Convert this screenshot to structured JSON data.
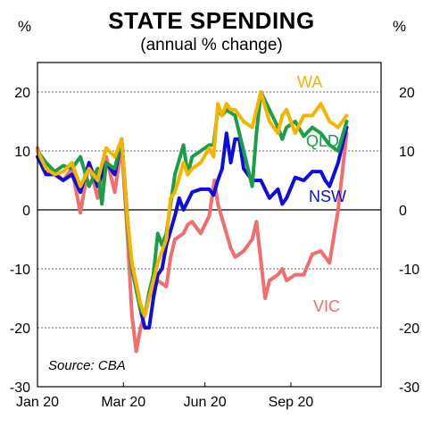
{
  "chart_data": {
    "type": "line",
    "title": "STATE SPENDING",
    "subtitle": "(annual % change)",
    "ylabel_left": "%",
    "ylabel_right": "%",
    "source": "Source: CBA",
    "ylim": [
      -30,
      25
    ],
    "xlim": [
      0,
      40
    ],
    "yticks": [
      20,
      10,
      0,
      -10,
      -20,
      -30
    ],
    "xticks": [
      {
        "x": 0,
        "label": "Jan 20"
      },
      {
        "x": 10,
        "label": "Mar 20"
      },
      {
        "x": 19.5,
        "label": "Jun 20"
      },
      {
        "x": 29.5,
        "label": "Sep 20"
      }
    ],
    "grid": true,
    "series": [
      {
        "name": "VIC",
        "color": "#f26d6d",
        "values": [
          [
            0,
            10.5
          ],
          [
            1,
            6
          ],
          [
            2,
            6.5
          ],
          [
            3,
            5
          ],
          [
            4,
            7
          ],
          [
            5,
            -0.5
          ],
          [
            6,
            8
          ],
          [
            7,
            2
          ],
          [
            8,
            9
          ],
          [
            9,
            3
          ],
          [
            9.8,
            11
          ],
          [
            10.5,
            -5
          ],
          [
            11,
            -18
          ],
          [
            11.5,
            -24
          ],
          [
            12,
            -20
          ],
          [
            13,
            -15
          ],
          [
            14,
            -12
          ],
          [
            15,
            -13
          ],
          [
            15.5,
            -8
          ],
          [
            16,
            -5
          ],
          [
            17,
            -4
          ],
          [
            17.5,
            -2.5
          ],
          [
            18,
            -2
          ],
          [
            19,
            -4
          ],
          [
            20,
            -1
          ],
          [
            20.6,
            5
          ],
          [
            21,
            1
          ],
          [
            22,
            -4
          ],
          [
            22.5,
            -6.5
          ],
          [
            23,
            -8
          ],
          [
            24,
            -7
          ],
          [
            25,
            -5
          ],
          [
            25.5,
            -2
          ],
          [
            26.5,
            -15
          ],
          [
            27,
            -12
          ],
          [
            28,
            -11
          ],
          [
            28.5,
            -10
          ],
          [
            29,
            -12
          ],
          [
            30,
            -11
          ],
          [
            31,
            -11
          ],
          [
            32,
            -7.5
          ],
          [
            33,
            -7
          ],
          [
            34,
            -9
          ],
          [
            35,
            0
          ],
          [
            36,
            13
          ]
        ]
      },
      {
        "name": "NSW",
        "color": "#0d0de0",
        "values": [
          [
            0,
            9
          ],
          [
            1,
            6
          ],
          [
            2,
            6
          ],
          [
            3,
            5
          ],
          [
            4,
            6
          ],
          [
            5,
            3
          ],
          [
            6,
            8
          ],
          [
            7,
            4
          ],
          [
            8,
            8
          ],
          [
            9,
            6
          ],
          [
            9.8,
            12
          ],
          [
            10.5,
            -2
          ],
          [
            11,
            -10
          ],
          [
            12,
            -17
          ],
          [
            12.5,
            -20
          ],
          [
            13,
            -20
          ],
          [
            13.5,
            -15
          ],
          [
            14,
            -11
          ],
          [
            14.5,
            -10
          ],
          [
            15,
            -6
          ],
          [
            16,
            -1
          ],
          [
            16.5,
            2
          ],
          [
            17,
            0
          ],
          [
            18,
            3
          ],
          [
            19,
            3.5
          ],
          [
            20,
            3.5
          ],
          [
            20.5,
            2.5
          ],
          [
            21,
            5
          ],
          [
            21.5,
            7
          ],
          [
            22,
            13
          ],
          [
            22.5,
            8
          ],
          [
            23,
            12
          ],
          [
            23.5,
            12
          ],
          [
            24,
            7
          ],
          [
            25,
            5
          ],
          [
            26,
            5
          ],
          [
            27,
            2
          ],
          [
            28,
            3.5
          ],
          [
            28.5,
            1
          ],
          [
            29,
            2
          ],
          [
            30,
            5.5
          ],
          [
            31,
            5
          ],
          [
            32,
            6.5
          ],
          [
            33,
            6.5
          ],
          [
            33.5,
            5
          ],
          [
            34,
            4
          ],
          [
            35,
            8
          ],
          [
            36,
            14
          ]
        ]
      },
      {
        "name": "QLD",
        "color": "#1a9e47",
        "values": [
          [
            0,
            10
          ],
          [
            1,
            8
          ],
          [
            2,
            6.5
          ],
          [
            3,
            7.5
          ],
          [
            4,
            7
          ],
          [
            5,
            9
          ],
          [
            6,
            4
          ],
          [
            7,
            7
          ],
          [
            7.5,
            1
          ],
          [
            8,
            8
          ],
          [
            9,
            7
          ],
          [
            9.8,
            12
          ],
          [
            10.5,
            -3
          ],
          [
            11,
            -10
          ],
          [
            12,
            -17
          ],
          [
            12.5,
            -18
          ],
          [
            13,
            -14
          ],
          [
            13.5,
            -11
          ],
          [
            14,
            -4
          ],
          [
            14.5,
            -6
          ],
          [
            15,
            -4
          ],
          [
            16,
            6
          ],
          [
            17,
            11
          ],
          [
            17.5,
            6
          ],
          [
            18,
            9
          ],
          [
            19,
            10
          ],
          [
            20,
            11
          ],
          [
            20.5,
            11
          ],
          [
            21,
            17
          ],
          [
            21.5,
            16
          ],
          [
            22,
            17
          ],
          [
            23,
            16
          ],
          [
            24,
            10
          ],
          [
            25,
            4
          ],
          [
            25.5,
            13
          ],
          [
            26,
            20
          ],
          [
            27,
            17
          ],
          [
            28,
            14
          ],
          [
            28.5,
            12
          ],
          [
            29,
            14
          ],
          [
            30,
            15
          ],
          [
            31,
            12.5
          ],
          [
            32,
            14
          ],
          [
            33,
            13
          ],
          [
            34,
            11
          ],
          [
            35,
            10
          ],
          [
            36,
            15
          ]
        ]
      },
      {
        "name": "WA",
        "color": "#f5b400",
        "values": [
          [
            0,
            10
          ],
          [
            1,
            7
          ],
          [
            2,
            6
          ],
          [
            3,
            6.5
          ],
          [
            4,
            8
          ],
          [
            5,
            4
          ],
          [
            6,
            7
          ],
          [
            7,
            5
          ],
          [
            8,
            10.5
          ],
          [
            9,
            9
          ],
          [
            9.8,
            12
          ],
          [
            10.5,
            -2
          ],
          [
            11,
            -9
          ],
          [
            12,
            -16
          ],
          [
            12.5,
            -18
          ],
          [
            13,
            -15
          ],
          [
            14,
            -9
          ],
          [
            15,
            -5
          ],
          [
            15.5,
            2
          ],
          [
            16,
            3
          ],
          [
            17,
            8
          ],
          [
            17.5,
            6
          ],
          [
            18,
            7
          ],
          [
            19,
            8
          ],
          [
            20,
            10.5
          ],
          [
            20.5,
            9
          ],
          [
            21,
            18
          ],
          [
            21.5,
            16
          ],
          [
            22,
            18
          ],
          [
            22.5,
            17
          ],
          [
            23,
            17
          ],
          [
            24,
            15
          ],
          [
            25,
            14
          ],
          [
            26,
            20
          ],
          [
            27,
            15
          ],
          [
            28,
            13
          ],
          [
            28.5,
            16
          ],
          [
            29,
            17
          ],
          [
            30,
            13
          ],
          [
            31,
            16
          ],
          [
            32,
            16
          ],
          [
            33,
            18
          ],
          [
            34,
            15
          ],
          [
            35,
            14
          ],
          [
            36,
            16
          ]
        ]
      }
    ],
    "labels": [
      {
        "text": "WA",
        "series": "WA",
        "color": "#f5b400"
      },
      {
        "text": "QLD",
        "series": "QLD",
        "color": "#1a9e47"
      },
      {
        "text": "NSW",
        "series": "NSW",
        "color": "#0d0de0"
      },
      {
        "text": "VIC",
        "series": "VIC",
        "color": "#f26d6d"
      }
    ]
  }
}
